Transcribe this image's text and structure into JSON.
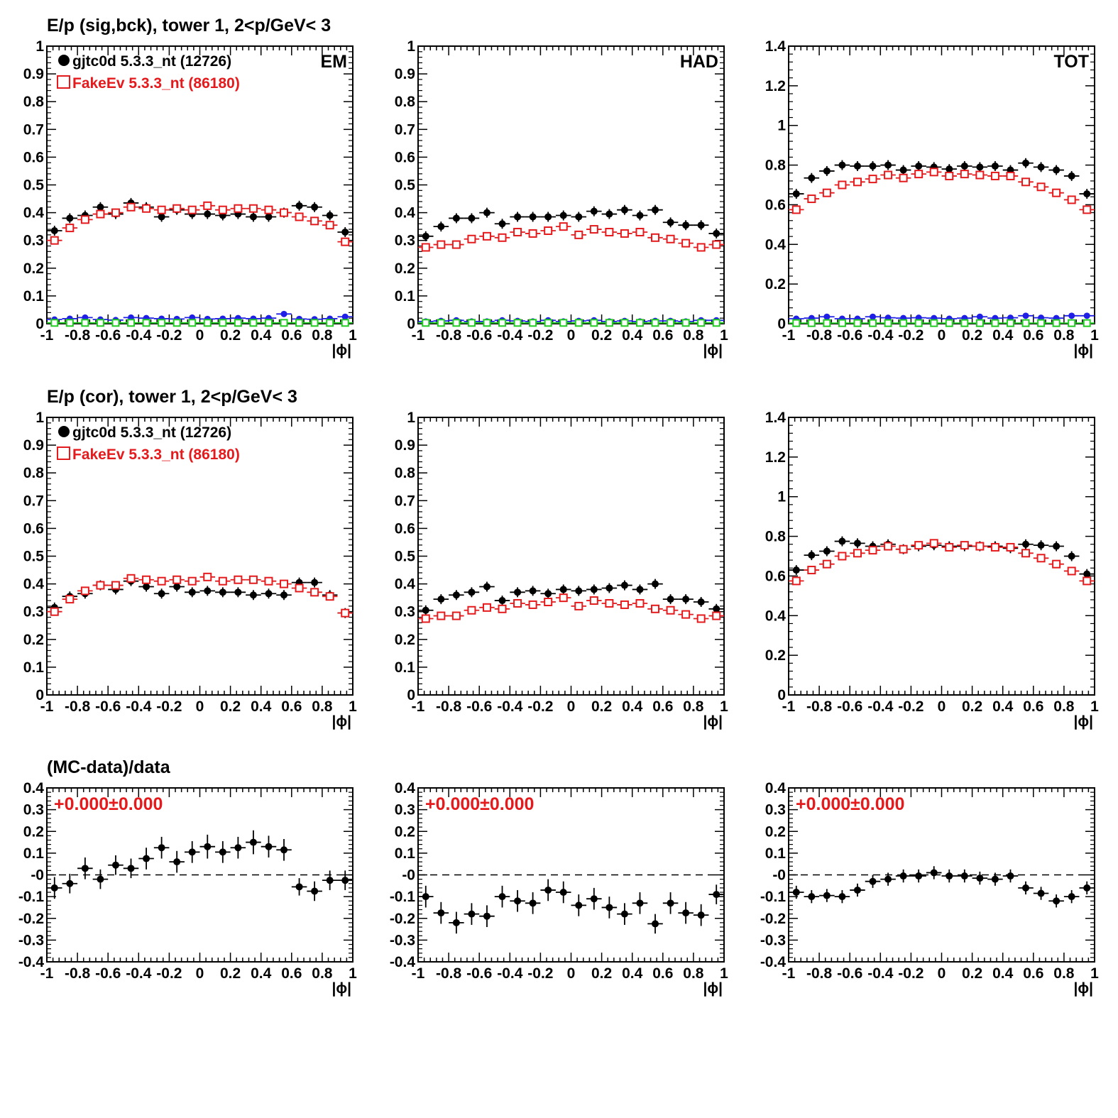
{
  "colors": {
    "data": "#000000",
    "mc": "#e41a1c",
    "bck_blue": "#1f1fe6",
    "bck_green": "#22cc22",
    "frame": "#000000"
  },
  "rows": [
    {
      "title": "E/p (sig,bck), tower 1,  2<p/GeV< 3"
    },
    {
      "title": "E/p (cor), tower 1,  2<p/GeV< 3"
    },
    {
      "title": "(MC-data)/data"
    }
  ],
  "legend": {
    "data_label": "gjtc0d 5.3.3_nt (12726)",
    "mc_label": "FakeEv 5.3.3_nt (86180)"
  },
  "x_tick_labels": [
    "-1",
    "-0.8",
    "-0.6",
    "-0.4",
    "-0.2",
    "0",
    "0.2",
    "0.4",
    "0.6",
    "0.8",
    "1"
  ],
  "chart_data": [
    {
      "type": "scatter",
      "panel": "sig-bck-em",
      "corner_label": "EM",
      "xlabel": "|ϕ|",
      "xlim": [
        -1,
        1
      ],
      "ylim": [
        0,
        1
      ],
      "y_ticks": [
        0,
        0.1,
        0.2,
        0.3,
        0.4,
        0.5,
        0.6,
        0.7,
        0.8,
        0.9,
        1
      ],
      "y_tick_labels": [
        "0",
        "0.1",
        "0.2",
        "0.3",
        "0.4",
        "0.5",
        "0.6",
        "0.7",
        "0.8",
        "0.9",
        "1"
      ],
      "x": [
        -0.95,
        -0.85,
        -0.75,
        -0.65,
        -0.55,
        -0.45,
        -0.35,
        -0.25,
        -0.15,
        -0.05,
        0.05,
        0.15,
        0.25,
        0.35,
        0.45,
        0.55,
        0.65,
        0.75,
        0.85,
        0.95
      ],
      "series": [
        {
          "name": "gjtc0d 5.3.3_nt (12726)",
          "role": "data",
          "values": [
            0.335,
            0.38,
            0.39,
            0.42,
            0.395,
            0.435,
            0.42,
            0.385,
            0.41,
            0.395,
            0.395,
            0.39,
            0.395,
            0.385,
            0.385,
            0.4,
            0.425,
            0.42,
            0.39,
            0.33
          ]
        },
        {
          "name": "FakeEv 5.3.3_nt (86180)",
          "role": "mc",
          "values": [
            0.3,
            0.345,
            0.375,
            0.395,
            0.4,
            0.42,
            0.415,
            0.41,
            0.415,
            0.41,
            0.425,
            0.41,
            0.415,
            0.415,
            0.41,
            0.4,
            0.385,
            0.37,
            0.355,
            0.295
          ]
        },
        {
          "role": "bck_blue",
          "values": [
            0.015,
            0.018,
            0.022,
            0.015,
            0.013,
            0.022,
            0.02,
            0.018,
            0.017,
            0.022,
            0.017,
            0.018,
            0.02,
            0.018,
            0.02,
            0.035,
            0.017,
            0.016,
            0.018,
            0.025
          ]
        },
        {
          "role": "bck_green",
          "values": [
            0.003,
            0.003,
            0.003,
            0.003,
            0.003,
            0.003,
            0.003,
            0.003,
            0.003,
            0.003,
            0.003,
            0.003,
            0.003,
            0.003,
            0.003,
            0.003,
            0.003,
            0.003,
            0.003,
            0.003
          ]
        }
      ]
    },
    {
      "type": "scatter",
      "panel": "sig-bck-had",
      "corner_label": "HAD",
      "xlabel": "|ϕ|",
      "xlim": [
        -1,
        1
      ],
      "ylim": [
        0,
        1
      ],
      "y_ticks": [
        0,
        0.1,
        0.2,
        0.3,
        0.4,
        0.5,
        0.6,
        0.7,
        0.8,
        0.9,
        1
      ],
      "y_tick_labels": [
        "0",
        "0.1",
        "0.2",
        "0.3",
        "0.4",
        "0.5",
        "0.6",
        "0.7",
        "0.8",
        "0.9",
        "1"
      ],
      "x": [
        -0.95,
        -0.85,
        -0.75,
        -0.65,
        -0.55,
        -0.45,
        -0.35,
        -0.25,
        -0.15,
        -0.05,
        0.05,
        0.15,
        0.25,
        0.35,
        0.45,
        0.55,
        0.65,
        0.75,
        0.85,
        0.95
      ],
      "series": [
        {
          "name": "gjtc0d 5.3.3_nt (12726)",
          "role": "data",
          "values": [
            0.315,
            0.35,
            0.38,
            0.38,
            0.4,
            0.36,
            0.385,
            0.385,
            0.385,
            0.39,
            0.385,
            0.405,
            0.395,
            0.41,
            0.39,
            0.41,
            0.365,
            0.355,
            0.355,
            0.325
          ]
        },
        {
          "name": "FakeEv 5.3.3_nt (86180)",
          "role": "mc",
          "values": [
            0.275,
            0.285,
            0.285,
            0.305,
            0.315,
            0.31,
            0.33,
            0.325,
            0.335,
            0.35,
            0.32,
            0.34,
            0.33,
            0.325,
            0.33,
            0.31,
            0.305,
            0.29,
            0.275,
            0.285
          ]
        },
        {
          "role": "bck_blue",
          "values": [
            0.008,
            0.01,
            0.012,
            0.008,
            0.008,
            0.012,
            0.01,
            0.008,
            0.012,
            0.008,
            0.01,
            0.012,
            0.008,
            0.01,
            0.008,
            0.01,
            0.01,
            0.008,
            0.012,
            0.012
          ]
        },
        {
          "role": "bck_green",
          "values": [
            0.003,
            0.003,
            0.003,
            0.003,
            0.003,
            0.003,
            0.003,
            0.003,
            0.003,
            0.003,
            0.003,
            0.003,
            0.003,
            0.003,
            0.003,
            0.003,
            0.003,
            0.003,
            0.003,
            0.003
          ]
        }
      ]
    },
    {
      "type": "scatter",
      "panel": "sig-bck-tot",
      "corner_label": "TOT",
      "xlabel": "|ϕ|",
      "xlim": [
        -1,
        1
      ],
      "ylim": [
        0,
        1.4
      ],
      "y_ticks": [
        0,
        0.2,
        0.4,
        0.6,
        0.8,
        1,
        1.2,
        1.4
      ],
      "y_tick_labels": [
        "0",
        "0.2",
        "0.4",
        "0.6",
        "0.8",
        "1",
        "1.2",
        "1.4"
      ],
      "x": [
        -0.95,
        -0.85,
        -0.75,
        -0.65,
        -0.55,
        -0.45,
        -0.35,
        -0.25,
        -0.15,
        -0.05,
        0.05,
        0.15,
        0.25,
        0.35,
        0.45,
        0.55,
        0.65,
        0.75,
        0.85,
        0.95
      ],
      "series": [
        {
          "name": "gjtc0d 5.3.3_nt (12726)",
          "role": "data",
          "values": [
            0.655,
            0.735,
            0.77,
            0.8,
            0.795,
            0.795,
            0.8,
            0.775,
            0.795,
            0.79,
            0.78,
            0.795,
            0.79,
            0.795,
            0.775,
            0.81,
            0.79,
            0.775,
            0.745,
            0.655
          ]
        },
        {
          "name": "FakeEv 5.3.3_nt (86180)",
          "role": "mc",
          "values": [
            0.575,
            0.63,
            0.66,
            0.7,
            0.715,
            0.73,
            0.75,
            0.735,
            0.755,
            0.765,
            0.745,
            0.755,
            0.75,
            0.745,
            0.745,
            0.715,
            0.69,
            0.66,
            0.625,
            0.575
          ]
        },
        {
          "role": "bck_blue",
          "values": [
            0.025,
            0.028,
            0.035,
            0.025,
            0.025,
            0.035,
            0.03,
            0.028,
            0.03,
            0.028,
            0.025,
            0.028,
            0.035,
            0.028,
            0.03,
            0.04,
            0.03,
            0.028,
            0.04,
            0.04
          ]
        },
        {
          "role": "bck_green",
          "values": [
            0.003,
            0.003,
            0.003,
            0.003,
            0.003,
            0.003,
            0.003,
            0.003,
            0.003,
            0.003,
            0.003,
            0.003,
            0.003,
            0.003,
            0.003,
            0.003,
            0.003,
            0.003,
            0.003,
            0.003
          ]
        }
      ]
    },
    {
      "type": "scatter",
      "panel": "cor-em",
      "xlabel": "|ϕ|",
      "xlim": [
        -1,
        1
      ],
      "ylim": [
        0,
        1
      ],
      "y_ticks": [
        0,
        0.1,
        0.2,
        0.3,
        0.4,
        0.5,
        0.6,
        0.7,
        0.8,
        0.9,
        1
      ],
      "y_tick_labels": [
        "0",
        "0.1",
        "0.2",
        "0.3",
        "0.4",
        "0.5",
        "0.6",
        "0.7",
        "0.8",
        "0.9",
        "1"
      ],
      "x": [
        -0.95,
        -0.85,
        -0.75,
        -0.65,
        -0.55,
        -0.45,
        -0.35,
        -0.25,
        -0.15,
        -0.05,
        0.05,
        0.15,
        0.25,
        0.35,
        0.45,
        0.55,
        0.65,
        0.75,
        0.85,
        0.95
      ],
      "series": [
        {
          "name": "gjtc0d 5.3.3_nt (12726)",
          "role": "data",
          "values": [
            0.315,
            0.355,
            0.365,
            0.395,
            0.38,
            0.41,
            0.39,
            0.365,
            0.39,
            0.37,
            0.375,
            0.37,
            0.37,
            0.36,
            0.365,
            0.36,
            0.405,
            0.405,
            0.36,
            0.295
          ]
        },
        {
          "name": "FakeEv 5.3.3_nt (86180)",
          "role": "mc",
          "values": [
            0.3,
            0.345,
            0.375,
            0.395,
            0.395,
            0.42,
            0.415,
            0.41,
            0.415,
            0.41,
            0.425,
            0.41,
            0.415,
            0.415,
            0.41,
            0.4,
            0.385,
            0.37,
            0.355,
            0.295
          ]
        }
      ]
    },
    {
      "type": "scatter",
      "panel": "cor-had",
      "xlabel": "|ϕ|",
      "xlim": [
        -1,
        1
      ],
      "ylim": [
        0,
        1
      ],
      "y_ticks": [
        0,
        0.1,
        0.2,
        0.3,
        0.4,
        0.5,
        0.6,
        0.7,
        0.8,
        0.9,
        1
      ],
      "y_tick_labels": [
        "0",
        "0.1",
        "0.2",
        "0.3",
        "0.4",
        "0.5",
        "0.6",
        "0.7",
        "0.8",
        "0.9",
        "1"
      ],
      "x": [
        -0.95,
        -0.85,
        -0.75,
        -0.65,
        -0.55,
        -0.45,
        -0.35,
        -0.25,
        -0.15,
        -0.05,
        0.05,
        0.15,
        0.25,
        0.35,
        0.45,
        0.55,
        0.65,
        0.75,
        0.85,
        0.95
      ],
      "series": [
        {
          "name": "gjtc0d 5.3.3_nt (12726)",
          "role": "data",
          "values": [
            0.305,
            0.345,
            0.36,
            0.37,
            0.39,
            0.34,
            0.37,
            0.375,
            0.365,
            0.38,
            0.375,
            0.38,
            0.385,
            0.395,
            0.38,
            0.4,
            0.345,
            0.345,
            0.335,
            0.31
          ]
        },
        {
          "name": "FakeEv 5.3.3_nt (86180)",
          "role": "mc",
          "values": [
            0.275,
            0.285,
            0.285,
            0.305,
            0.315,
            0.31,
            0.33,
            0.325,
            0.335,
            0.35,
            0.32,
            0.34,
            0.33,
            0.325,
            0.33,
            0.31,
            0.305,
            0.29,
            0.275,
            0.285
          ]
        }
      ]
    },
    {
      "type": "scatter",
      "panel": "cor-tot",
      "xlabel": "|ϕ|",
      "xlim": [
        -1,
        1
      ],
      "ylim": [
        0,
        1.4
      ],
      "y_ticks": [
        0,
        0.2,
        0.4,
        0.6,
        0.8,
        1,
        1.2,
        1.4
      ],
      "y_tick_labels": [
        "0",
        "0.2",
        "0.4",
        "0.6",
        "0.8",
        "1",
        "1.2",
        "1.4"
      ],
      "x": [
        -0.95,
        -0.85,
        -0.75,
        -0.65,
        -0.55,
        -0.45,
        -0.35,
        -0.25,
        -0.15,
        -0.05,
        0.05,
        0.15,
        0.25,
        0.35,
        0.45,
        0.55,
        0.65,
        0.75,
        0.85,
        0.95
      ],
      "series": [
        {
          "name": "gjtc0d 5.3.3_nt (12726)",
          "role": "data",
          "values": [
            0.63,
            0.705,
            0.725,
            0.775,
            0.765,
            0.75,
            0.76,
            0.735,
            0.75,
            0.755,
            0.75,
            0.75,
            0.75,
            0.75,
            0.74,
            0.76,
            0.755,
            0.75,
            0.7,
            0.61
          ]
        },
        {
          "name": "FakeEv 5.3.3_nt (86180)",
          "role": "mc",
          "values": [
            0.575,
            0.63,
            0.66,
            0.7,
            0.715,
            0.73,
            0.75,
            0.735,
            0.755,
            0.765,
            0.745,
            0.755,
            0.75,
            0.745,
            0.745,
            0.715,
            0.69,
            0.66,
            0.625,
            0.575
          ]
        }
      ]
    },
    {
      "type": "scatter",
      "panel": "ratio-em",
      "ratio_label": "+0.000±0.000",
      "xlabel": "|ϕ|",
      "xlim": [
        -1,
        1
      ],
      "ylim": [
        -0.4,
        0.4
      ],
      "y_ticks": [
        -0.4,
        -0.3,
        -0.2,
        -0.1,
        0,
        0.1,
        0.2,
        0.3,
        0.4
      ],
      "y_tick_labels": [
        "-0.4",
        "-0.3",
        "-0.2",
        "-0.1",
        "-0",
        "0.1",
        "0.2",
        "0.3",
        "0.4"
      ],
      "x": [
        -0.95,
        -0.85,
        -0.75,
        -0.65,
        -0.55,
        -0.45,
        -0.35,
        -0.25,
        -0.15,
        -0.05,
        0.05,
        0.15,
        0.25,
        0.35,
        0.45,
        0.55,
        0.65,
        0.75,
        0.85,
        0.95
      ],
      "series": [
        {
          "role": "ratio",
          "values": [
            -0.06,
            -0.04,
            0.03,
            -0.02,
            0.045,
            0.03,
            0.075,
            0.125,
            0.06,
            0.105,
            0.13,
            0.105,
            0.125,
            0.15,
            0.13,
            0.115,
            -0.055,
            -0.075,
            -0.025,
            -0.025
          ],
          "errors": [
            0.05,
            0.045,
            0.05,
            0.045,
            0.045,
            0.045,
            0.05,
            0.05,
            0.05,
            0.05,
            0.055,
            0.05,
            0.05,
            0.055,
            0.05,
            0.05,
            0.04,
            0.045,
            0.045,
            0.045
          ]
        }
      ]
    },
    {
      "type": "scatter",
      "panel": "ratio-had",
      "ratio_label": "+0.000±0.000",
      "xlabel": "|ϕ|",
      "xlim": [
        -1,
        1
      ],
      "ylim": [
        -0.4,
        0.4
      ],
      "y_ticks": [
        -0.4,
        -0.3,
        -0.2,
        -0.1,
        0,
        0.1,
        0.2,
        0.3,
        0.4
      ],
      "y_tick_labels": [
        "-0.4",
        "-0.3",
        "-0.2",
        "-0.1",
        "-0",
        "0.1",
        "0.2",
        "0.3",
        "0.4"
      ],
      "x": [
        -0.95,
        -0.85,
        -0.75,
        -0.65,
        -0.55,
        -0.45,
        -0.35,
        -0.25,
        -0.15,
        -0.05,
        0.05,
        0.15,
        0.25,
        0.35,
        0.45,
        0.55,
        0.65,
        0.75,
        0.85,
        0.95
      ],
      "series": [
        {
          "role": "ratio",
          "values": [
            -0.1,
            -0.175,
            -0.22,
            -0.18,
            -0.19,
            -0.1,
            -0.12,
            -0.13,
            -0.07,
            -0.08,
            -0.14,
            -0.11,
            -0.15,
            -0.18,
            -0.13,
            -0.225,
            -0.13,
            -0.175,
            -0.185,
            -0.09
          ],
          "errors": [
            0.05,
            0.05,
            0.05,
            0.05,
            0.05,
            0.05,
            0.05,
            0.05,
            0.05,
            0.05,
            0.05,
            0.05,
            0.05,
            0.05,
            0.05,
            0.045,
            0.05,
            0.05,
            0.05,
            0.045
          ]
        }
      ]
    },
    {
      "type": "scatter",
      "panel": "ratio-tot",
      "ratio_label": "+0.000±0.000",
      "xlabel": "|ϕ|",
      "xlim": [
        -1,
        1
      ],
      "ylim": [
        -0.4,
        0.4
      ],
      "y_ticks": [
        -0.4,
        -0.3,
        -0.2,
        -0.1,
        0,
        0.1,
        0.2,
        0.3,
        0.4
      ],
      "y_tick_labels": [
        "-0.4",
        "-0.3",
        "-0.2",
        "-0.1",
        "-0",
        "0.1",
        "0.2",
        "0.3",
        "0.4"
      ],
      "x": [
        -0.95,
        -0.85,
        -0.75,
        -0.65,
        -0.55,
        -0.45,
        -0.35,
        -0.25,
        -0.15,
        -0.05,
        0.05,
        0.15,
        0.25,
        0.35,
        0.45,
        0.55,
        0.65,
        0.75,
        0.85,
        0.95
      ],
      "series": [
        {
          "role": "ratio",
          "values": [
            -0.08,
            -0.1,
            -0.095,
            -0.1,
            -0.07,
            -0.03,
            -0.02,
            -0.005,
            -0.005,
            0.01,
            -0.005,
            -0.005,
            -0.015,
            -0.02,
            -0.005,
            -0.06,
            -0.085,
            -0.12,
            -0.1,
            -0.06
          ],
          "errors": [
            0.03,
            0.03,
            0.03,
            0.03,
            0.03,
            0.03,
            0.03,
            0.03,
            0.03,
            0.03,
            0.03,
            0.03,
            0.03,
            0.03,
            0.03,
            0.03,
            0.03,
            0.03,
            0.03,
            0.03
          ]
        }
      ]
    }
  ]
}
